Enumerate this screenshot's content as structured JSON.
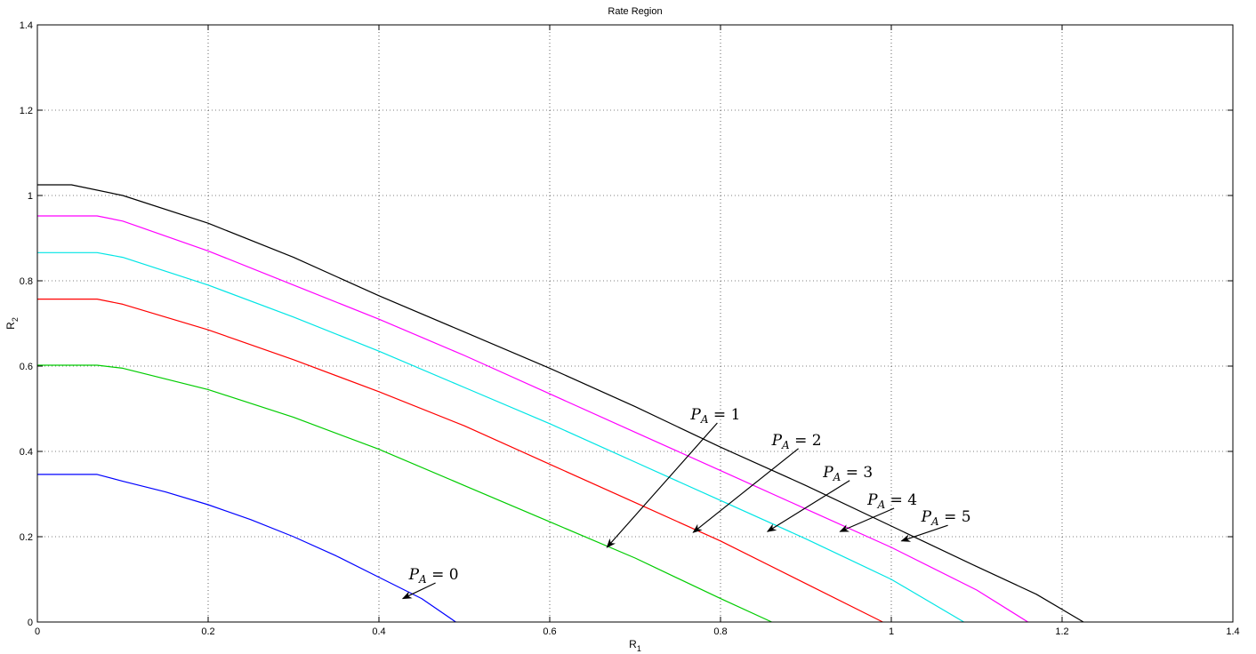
{
  "chart_data": {
    "type": "line",
    "title": "Rate Region",
    "xlabel": "R",
    "xlabel_sub": "1",
    "ylabel": "R",
    "ylabel_sub": "2",
    "xlim": [
      0,
      1.4
    ],
    "ylim": [
      0,
      1.4
    ],
    "xticks": [
      "0",
      "0.2",
      "0.4",
      "0.6",
      "0.8",
      "1",
      "1.2",
      "1.4"
    ],
    "yticks": [
      "0",
      "0.2",
      "0.4",
      "0.6",
      "0.8",
      "1",
      "1.2",
      "1.4"
    ],
    "grid": true,
    "series": [
      {
        "color": "#0000ff",
        "x": [
          0,
          0.07,
          0.1,
          0.15,
          0.2,
          0.25,
          0.3,
          0.35,
          0.4,
          0.45,
          0.49
        ],
        "y": [
          0.346,
          0.346,
          0.33,
          0.305,
          0.275,
          0.24,
          0.2,
          0.155,
          0.105,
          0.055,
          0.0
        ]
      },
      {
        "color": "#00cc00",
        "x": [
          0,
          0.07,
          0.1,
          0.2,
          0.3,
          0.4,
          0.5,
          0.6,
          0.7,
          0.8,
          0.86
        ],
        "y": [
          0.602,
          0.602,
          0.595,
          0.545,
          0.48,
          0.405,
          0.32,
          0.235,
          0.15,
          0.055,
          0.0
        ]
      },
      {
        "color": "#ff0000",
        "x": [
          0,
          0.07,
          0.1,
          0.2,
          0.3,
          0.4,
          0.5,
          0.6,
          0.7,
          0.8,
          0.9,
          0.99
        ],
        "y": [
          0.757,
          0.757,
          0.745,
          0.685,
          0.615,
          0.54,
          0.46,
          0.37,
          0.28,
          0.19,
          0.09,
          0.0
        ]
      },
      {
        "color": "#00e5e5",
        "x": [
          0,
          0.07,
          0.1,
          0.2,
          0.3,
          0.4,
          0.5,
          0.6,
          0.7,
          0.8,
          0.9,
          1.0,
          1.085
        ],
        "y": [
          0.866,
          0.866,
          0.855,
          0.79,
          0.715,
          0.635,
          0.55,
          0.465,
          0.375,
          0.285,
          0.195,
          0.1,
          0.0
        ]
      },
      {
        "color": "#ff00ff",
        "x": [
          0,
          0.07,
          0.1,
          0.2,
          0.3,
          0.4,
          0.5,
          0.6,
          0.7,
          0.8,
          0.9,
          1.0,
          1.1,
          1.16
        ],
        "y": [
          0.952,
          0.952,
          0.94,
          0.87,
          0.79,
          0.71,
          0.625,
          0.535,
          0.445,
          0.355,
          0.265,
          0.175,
          0.075,
          0.0
        ]
      },
      {
        "color": "#000000",
        "x": [
          0,
          0.04,
          0.1,
          0.2,
          0.3,
          0.4,
          0.5,
          0.6,
          0.7,
          0.8,
          0.9,
          1.0,
          1.1,
          1.17,
          1.225
        ],
        "y": [
          1.025,
          1.025,
          1.0,
          0.935,
          0.855,
          0.765,
          0.68,
          0.595,
          0.505,
          0.41,
          0.32,
          0.225,
          0.13,
          0.065,
          0.0
        ]
      }
    ],
    "annotations": [
      {
        "text": "P_A = 0",
        "label_x": 0.435,
        "label_y": 0.1,
        "tip_x": 0.428,
        "tip_y": 0.055
      },
      {
        "text": "P_A = 1",
        "label_x": 0.765,
        "label_y": 0.475,
        "tip_x": 0.667,
        "tip_y": 0.175
      },
      {
        "text": "P_A = 2",
        "label_x": 0.86,
        "label_y": 0.415,
        "tip_x": 0.768,
        "tip_y": 0.21
      },
      {
        "text": "P_A = 3",
        "label_x": 0.92,
        "label_y": 0.34,
        "tip_x": 0.855,
        "tip_y": 0.212
      },
      {
        "text": "P_A = 4",
        "label_x": 0.972,
        "label_y": 0.275,
        "tip_x": 0.94,
        "tip_y": 0.212
      },
      {
        "text": "P_A = 5",
        "label_x": 1.035,
        "label_y": 0.235,
        "tip_x": 1.012,
        "tip_y": 0.19
      }
    ]
  }
}
